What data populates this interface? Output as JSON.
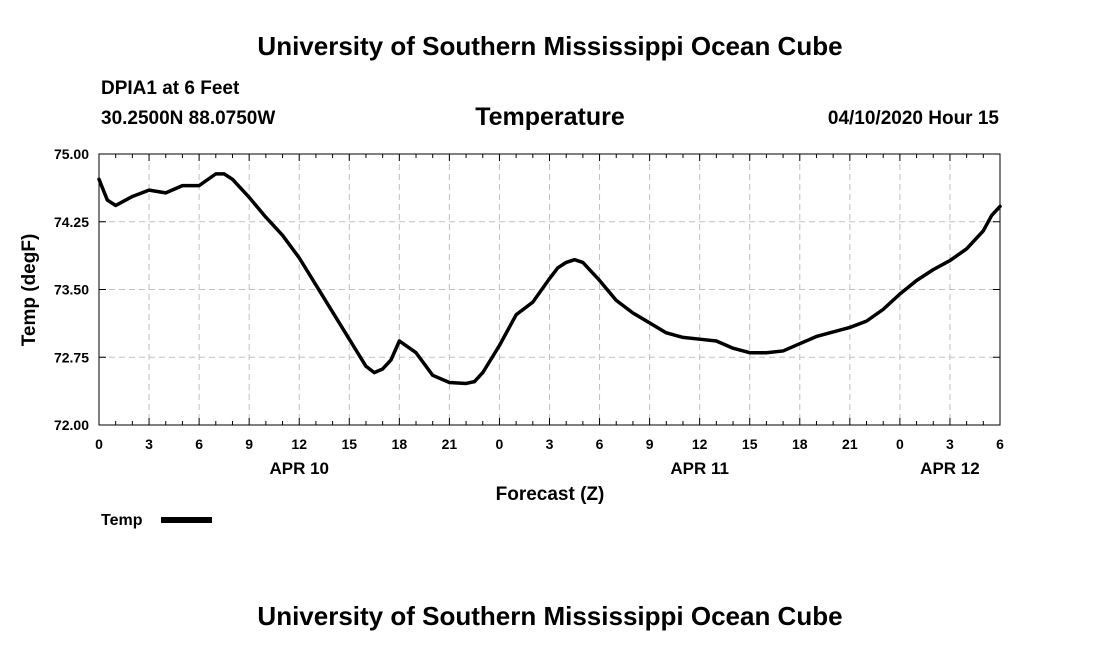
{
  "header": {
    "title": "University of Southern Mississippi Ocean Cube",
    "station": "DPIA1 at 6 Feet",
    "coords": "30.2500N 88.0750W",
    "plot_title": "Temperature",
    "datetime": "04/10/2020 Hour 15"
  },
  "footer": {
    "title": "University of Southern Mississippi Ocean Cube"
  },
  "chart_data": {
    "type": "line",
    "title": "Temperature",
    "xlabel": "Forecast (Z)",
    "ylabel": "Temp (degF)",
    "ylim": [
      72.0,
      75.0
    ],
    "xlim_hours": [
      0,
      54
    ],
    "y_ticks": [
      "72.00",
      "72.75",
      "73.50",
      "74.25",
      "75.00"
    ],
    "x_tick_labels": [
      "0",
      "3",
      "6",
      "9",
      "12",
      "15",
      "18",
      "21",
      "0",
      "3",
      "6",
      "9",
      "12",
      "15",
      "18",
      "21",
      "0",
      "3",
      "6"
    ],
    "date_labels": [
      {
        "label": "APR 10",
        "hour": 12
      },
      {
        "label": "APR 11",
        "hour": 36
      },
      {
        "label": "APR 12",
        "hour": 51
      }
    ],
    "grid": true,
    "legend": {
      "position": "bottom-left",
      "entries": [
        "Temp"
      ]
    },
    "series": [
      {
        "name": "Temp",
        "color": "#000000",
        "x": [
          0,
          0.5,
          1,
          1.5,
          2,
          3,
          4,
          5,
          6,
          7,
          7.5,
          8,
          9,
          10,
          11,
          12,
          13,
          14,
          15,
          15.5,
          16,
          16.5,
          17,
          17.5,
          18,
          19,
          20,
          21,
          22,
          22.5,
          23,
          24,
          25,
          26,
          27,
          27.5,
          28,
          28.5,
          29,
          30,
          31,
          32,
          33,
          34,
          35,
          36,
          37,
          38,
          39,
          40,
          41,
          42,
          43,
          44,
          45,
          46,
          47,
          48,
          49,
          50,
          51,
          52,
          53,
          53.5,
          54
        ],
        "y": [
          74.72,
          74.49,
          74.43,
          74.48,
          74.53,
          74.6,
          74.57,
          74.65,
          74.65,
          74.78,
          74.78,
          74.72,
          74.52,
          74.3,
          74.1,
          73.85,
          73.55,
          73.25,
          72.95,
          72.8,
          72.65,
          72.58,
          72.62,
          72.72,
          72.93,
          72.8,
          72.55,
          72.47,
          72.46,
          72.48,
          72.58,
          72.88,
          73.22,
          73.36,
          73.62,
          73.74,
          73.8,
          73.83,
          73.8,
          73.6,
          73.38,
          73.24,
          73.13,
          73.02,
          72.97,
          72.95,
          72.93,
          72.85,
          72.8,
          72.8,
          72.82,
          72.9,
          72.98,
          73.03,
          73.08,
          73.15,
          73.28,
          73.45,
          73.6,
          73.72,
          73.82,
          73.95,
          74.15,
          74.32,
          74.42
        ]
      }
    ]
  }
}
